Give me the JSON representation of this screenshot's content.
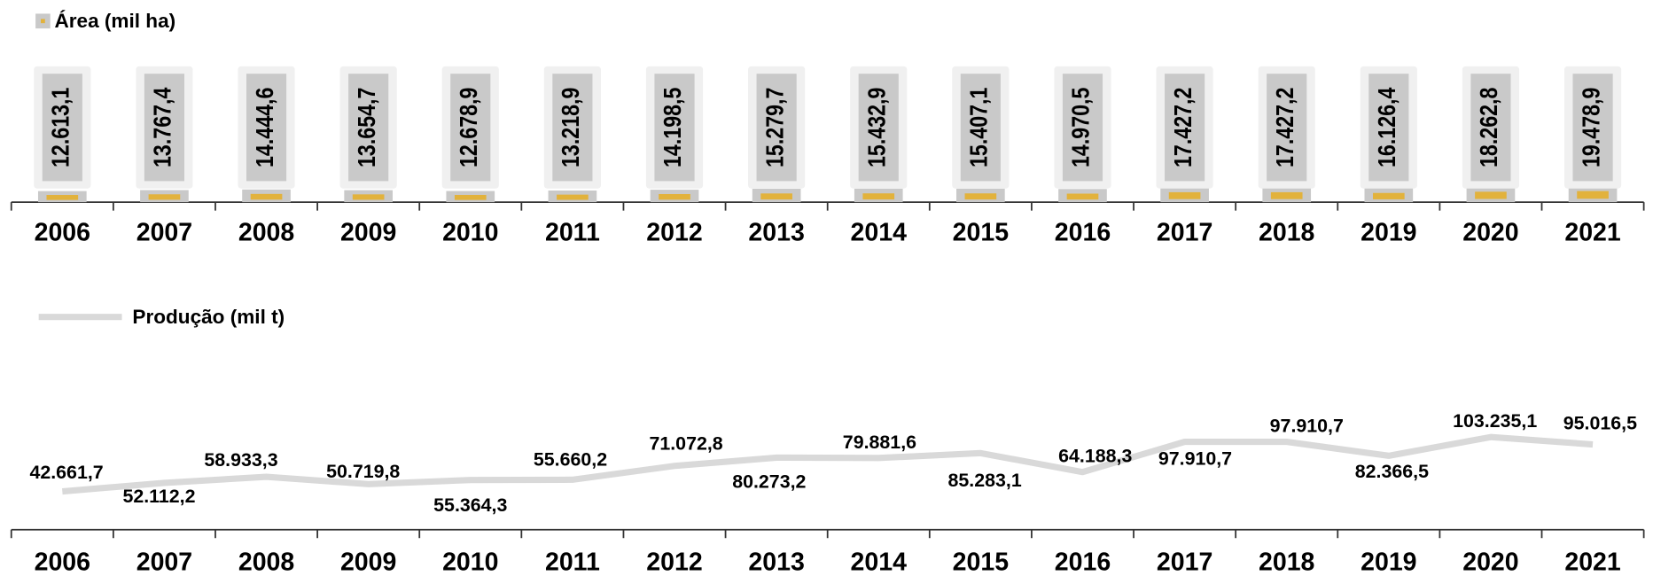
{
  "chart_data": [
    {
      "type": "bar",
      "legend": "Área (mil ha)",
      "color": "#c9c9c9",
      "accent": "#e2b23c",
      "categories": [
        "2006",
        "2007",
        "2008",
        "2009",
        "2010",
        "2011",
        "2012",
        "2013",
        "2014",
        "2015",
        "2016",
        "2017",
        "2018",
        "2019",
        "2020",
        "2021"
      ],
      "values": [
        12613.1,
        13767.4,
        14444.6,
        13654.7,
        12678.9,
        13218.9,
        14198.5,
        15279.7,
        15432.9,
        15407.1,
        14970.5,
        17427.2,
        17427.2,
        16126.4,
        18262.8,
        19478.9
      ],
      "value_labels": [
        "12.613,1",
        "13.767,4",
        "14.444,6",
        "13.654,7",
        "12.678,9",
        "13.218,9",
        "14.198,5",
        "15.279,7",
        "15.432,9",
        "15.407,1",
        "14.970,5",
        "17.427,2",
        "17.427,2",
        "16.126,4",
        "18.262,8",
        "19.478,9"
      ],
      "ylim": [
        0,
        200000
      ]
    },
    {
      "type": "line",
      "legend": "Produção (mil t)",
      "color": "#d9d9d9",
      "categories": [
        "2006",
        "2007",
        "2008",
        "2009",
        "2010",
        "2011",
        "2012",
        "2013",
        "2014",
        "2015",
        "2016",
        "2017",
        "2018",
        "2019",
        "2020",
        "2021"
      ],
      "values": [
        42661.7,
        52112.2,
        58933.3,
        50719.8,
        55364.3,
        55660.2,
        71072.8,
        80273.2,
        79881.6,
        85283.1,
        64188.3,
        97910.7,
        97910.7,
        82366.5,
        103235.1,
        95016.5
      ],
      "value_labels": [
        "42.661,7",
        "52.112,2",
        "58.933,3",
        "50.719,8",
        "55.364,3",
        "55.660,2",
        "71.072,8",
        "80.273,2",
        "79.881,6",
        "85.283,1",
        "64.188,3",
        "97.910,7",
        "97.910,7",
        "82.366,5",
        "103.235,1",
        "95.016,5"
      ],
      "ylim": [
        0,
        250000
      ]
    }
  ]
}
